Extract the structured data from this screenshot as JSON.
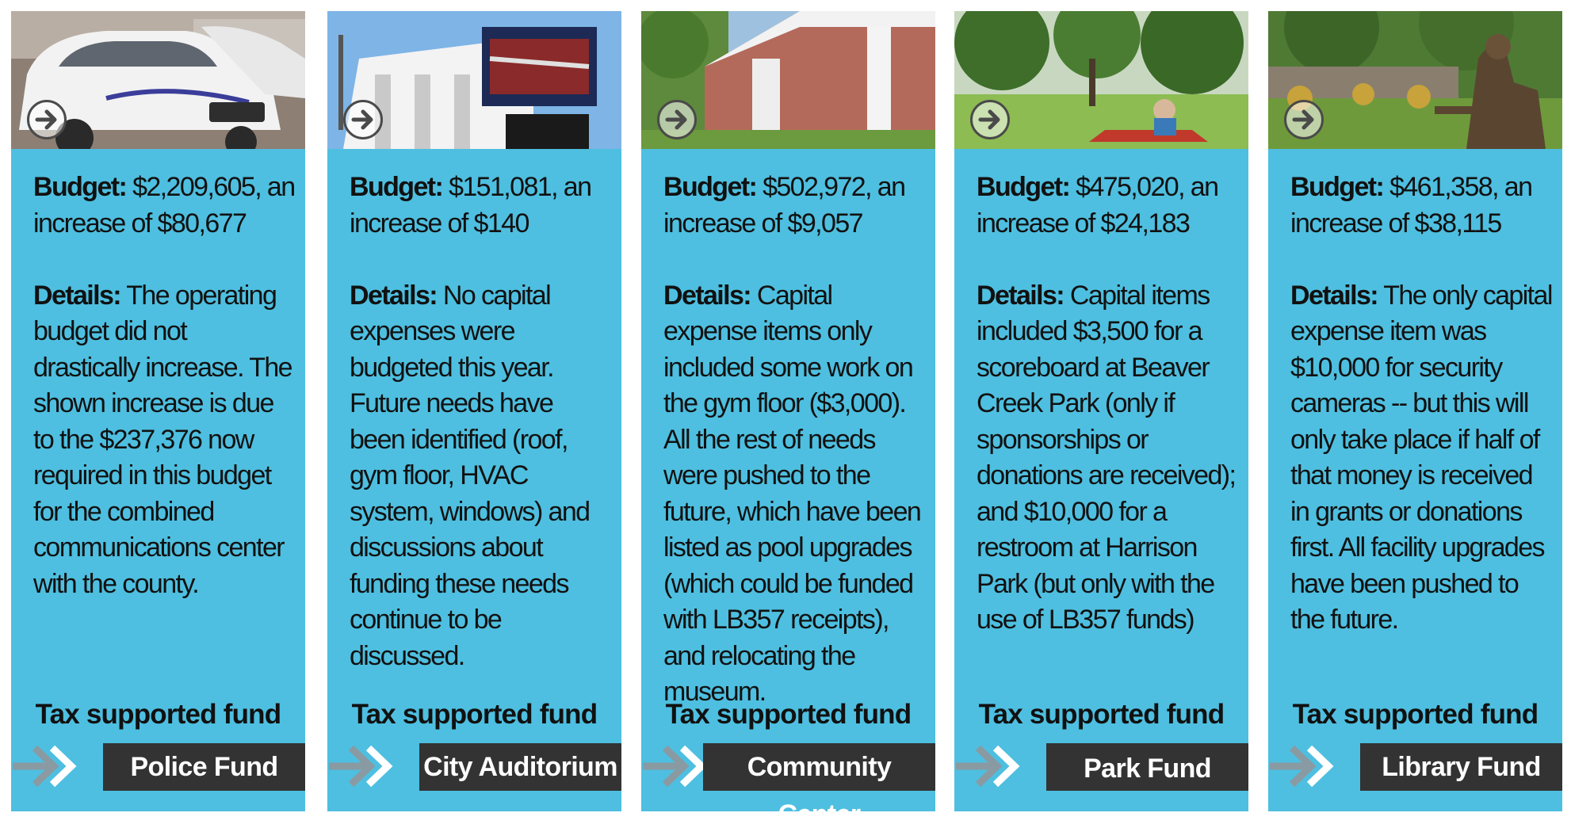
{
  "columns": [
    {
      "photo": "police-car-photo",
      "budget_label": "Budget:",
      "budget_text": " $2,209,605, an increase of $80,677",
      "details_label": "Details:",
      "details_text": " The operating budget did not drastically increase. The shown increase is due to the $237,376 now required in this budget for the combined communications center with the county.",
      "tax_label": "Tax supported fund",
      "fund_name": "Police Fund"
    },
    {
      "photo": "city-auditorium-photo",
      "budget_label": "Budget:",
      "budget_text": " $151,081, an increase of $140",
      "details_label": "Details:",
      "details_text": " No capital expenses were budgeted this year. Future needs have been identified (roof, gym floor, HVAC system, windows) and discussions about funding these needs continue to be discussed.",
      "tax_label": "Tax supported fund",
      "fund_name": "City Auditorium"
    },
    {
      "photo": "community-center-photo",
      "budget_label": "Budget:",
      "budget_text": " $502,972, an increase of $9,057",
      "details_label": "Details:",
      "details_text": " Capital expense items only included some work on the gym floor ($3,000). All the rest of needs were pushed to the future, which have been listed as pool upgrades (which could be funded with LB357 receipts), and relocating the museum.",
      "tax_label": "Tax supported fund",
      "fund_name": "Community Center"
    },
    {
      "photo": "park-photo",
      "budget_label": "Budget:",
      "budget_text": " $475,020, an increase of $24,183",
      "details_label": "Details:",
      "details_text": " Capital items included $3,500 for a scoreboard at Beaver Creek Park (only if sponsorships or donations are received); and $10,000 for a restroom at Harrison Park (but only with the use of LB357 funds)",
      "tax_label": "Tax supported fund",
      "fund_name": "Park Fund"
    },
    {
      "photo": "library-statue-photo",
      "budget_label": "Budget:",
      "budget_text": " $461,358, an increase of $38,115",
      "details_label": "Details:",
      "details_text": " The only capital expense item was $10,000 for security cameras -- but this will only take place if half of that money is received in grants or donations first. All facility upgrades have been pushed to the future.",
      "tax_label": "Tax supported fund",
      "fund_name": "Library Fund"
    }
  ],
  "colors": {
    "panel": "#4ebfe0",
    "tab": "#333333",
    "text": "#111111"
  }
}
